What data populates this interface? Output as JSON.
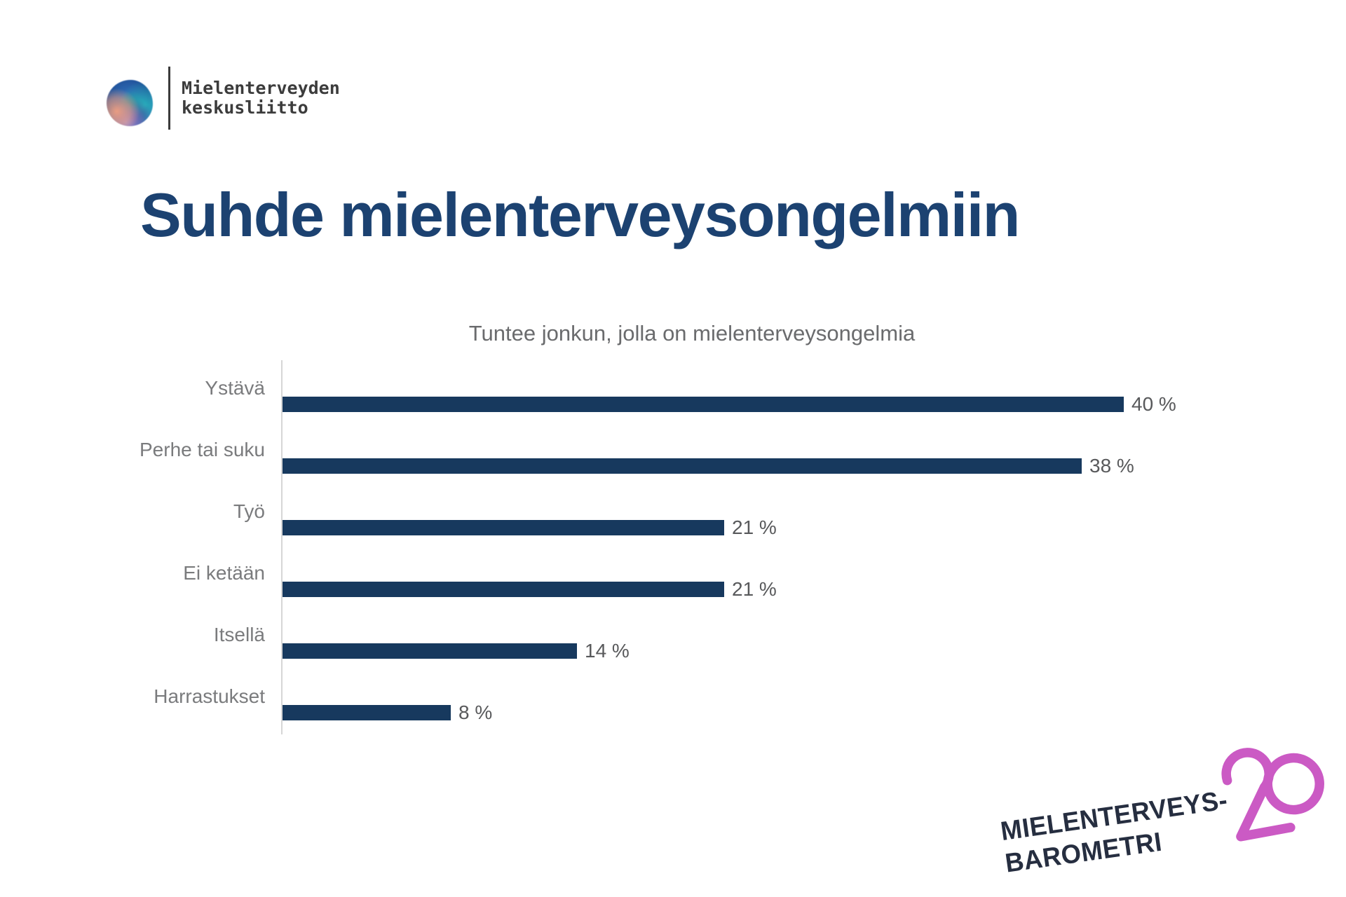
{
  "org_logo": {
    "line1": "Mielenterveyden",
    "line2": "keskusliitto"
  },
  "title": "Suhde mielenterveysongelmiin",
  "chart_data": {
    "type": "bar",
    "orientation": "horizontal",
    "title": "Tuntee jonkun, jolla on mielenterveysongelmia",
    "categories": [
      "Ystävä",
      "Perhe tai suku",
      "Työ",
      "Ei ketään",
      "Itsellä",
      "Harrastukset"
    ],
    "values": [
      40,
      38,
      21,
      21,
      14,
      8
    ],
    "value_labels": [
      "40 %",
      "38 %",
      "21 %",
      "21 %",
      "14 %",
      "8 %"
    ],
    "unit": "%",
    "xlim": [
      0,
      42
    ],
    "grid": false,
    "legend": false,
    "bar_color": "#17395e",
    "axis_color": "#d6d6d6",
    "category_label_color": "#7a7b7d",
    "value_label_color": "#58595b"
  },
  "footer_logo": {
    "line1": "MIELENTERVEYS-",
    "line2": "BAROMETRI",
    "number": "20",
    "number_color": "#cb5ac4",
    "text_color": "#262e40"
  },
  "colors": {
    "background": "#ffffff",
    "title": "#1c4271",
    "brand_navy": "#17395e",
    "brand_pink": "#cb5ac4"
  }
}
